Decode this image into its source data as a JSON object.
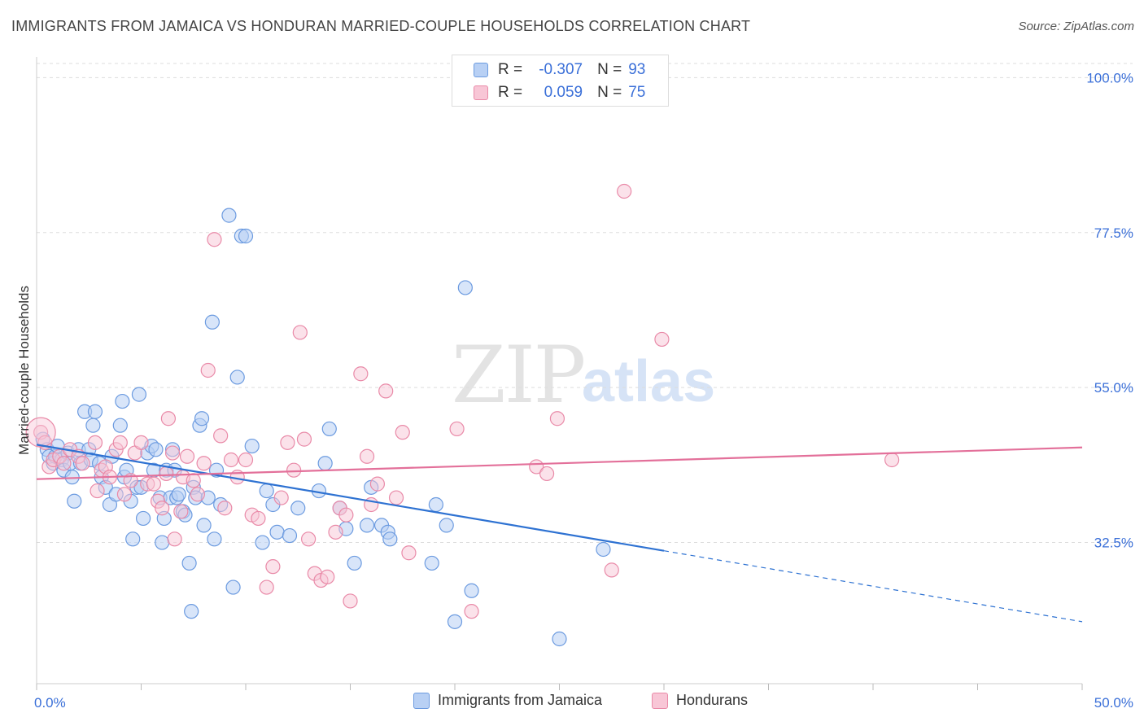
{
  "header": {
    "title": "IMMIGRANTS FROM JAMAICA VS HONDURAN MARRIED-COUPLE HOUSEHOLDS CORRELATION CHART",
    "source": "Source: ZipAtlas.com"
  },
  "watermark": {
    "part1": "ZIP",
    "part2": "atlas"
  },
  "legend_top": {
    "rows": [
      {
        "r_label": "R =",
        "r_value": "-0.307",
        "n_label": "N =",
        "n_value": "93"
      },
      {
        "r_label": "R =",
        "r_value": "0.059",
        "n_label": "N =",
        "n_value": "75"
      }
    ]
  },
  "legend_bottom": {
    "items": [
      "Immigrants from Jamaica",
      "Hondurans"
    ]
  },
  "colors": {
    "jamaica_fill": "#b8d0f4",
    "jamaica_stroke": "#6c9be0",
    "jamaica_line": "#2e72d2",
    "honduran_fill": "#f8c6d6",
    "honduran_stroke": "#e98aa8",
    "honduran_line": "#e3709a",
    "tick_label": "#3a6fd8",
    "grid": "#dddddd"
  },
  "chart_data": {
    "type": "scatter",
    "title": "IMMIGRANTS FROM JAMAICA VS HONDURAN MARRIED-COUPLE HOUSEHOLDS CORRELATION CHART",
    "xlabel": "",
    "ylabel": "Married-couple Households",
    "xlim": [
      0,
      50
    ],
    "ylim": [
      12,
      103
    ],
    "x_tick_labels": [
      "0.0%",
      "50.0%"
    ],
    "y_ticks": [
      32.5,
      55.0,
      77.5,
      100.0
    ],
    "y_tick_labels": [
      "32.5%",
      "55.0%",
      "77.5%",
      "100.0%"
    ],
    "grid": true,
    "legend": "bottom-center",
    "series": [
      {
        "name": "Immigrants from Jamaica",
        "r": -0.307,
        "n": 93,
        "trend": {
          "x0": 0,
          "y0": 46.7,
          "x1": 30,
          "y1": 31.3,
          "dash_to_x": 50,
          "dash_to_y": 21.0
        },
        "points": [
          [
            0.3,
            47.5
          ],
          [
            0.5,
            46
          ],
          [
            0.6,
            45
          ],
          [
            0.8,
            44
          ],
          [
            0.9,
            45
          ],
          [
            1.0,
            46.5
          ],
          [
            1.2,
            44.5
          ],
          [
            1.3,
            43
          ],
          [
            1.5,
            45.5
          ],
          [
            1.6,
            44
          ],
          [
            1.7,
            42
          ],
          [
            1.8,
            38.5
          ],
          [
            2.0,
            46
          ],
          [
            2.1,
            44
          ],
          [
            2.3,
            51.5
          ],
          [
            2.5,
            46
          ],
          [
            2.6,
            44.5
          ],
          [
            2.7,
            49.5
          ],
          [
            2.8,
            51.5
          ],
          [
            3.0,
            44
          ],
          [
            3.1,
            42
          ],
          [
            3.3,
            40.5
          ],
          [
            3.5,
            38
          ],
          [
            3.6,
            45
          ],
          [
            3.8,
            39.5
          ],
          [
            4.0,
            49.5
          ],
          [
            4.1,
            53
          ],
          [
            4.2,
            42
          ],
          [
            4.3,
            43
          ],
          [
            4.5,
            38.5
          ],
          [
            4.6,
            33
          ],
          [
            4.8,
            40.5
          ],
          [
            4.9,
            54
          ],
          [
            5.0,
            40.5
          ],
          [
            5.1,
            36
          ],
          [
            5.3,
            45.5
          ],
          [
            5.5,
            46.5
          ],
          [
            5.6,
            43
          ],
          [
            5.7,
            46
          ],
          [
            5.9,
            39
          ],
          [
            6.0,
            32.5
          ],
          [
            6.1,
            36
          ],
          [
            6.2,
            43
          ],
          [
            6.4,
            39
          ],
          [
            6.5,
            46
          ],
          [
            6.6,
            43
          ],
          [
            6.7,
            39
          ],
          [
            6.8,
            39.5
          ],
          [
            7.0,
            37
          ],
          [
            7.1,
            36.5
          ],
          [
            7.3,
            29.5
          ],
          [
            7.4,
            22.5
          ],
          [
            7.5,
            40.5
          ],
          [
            7.6,
            39
          ],
          [
            7.8,
            49.5
          ],
          [
            7.9,
            50.5
          ],
          [
            8.0,
            35
          ],
          [
            8.2,
            39
          ],
          [
            8.4,
            64.5
          ],
          [
            8.5,
            33
          ],
          [
            8.6,
            43
          ],
          [
            8.8,
            38
          ],
          [
            9.2,
            80
          ],
          [
            9.4,
            26
          ],
          [
            9.6,
            56.5
          ],
          [
            9.8,
            77
          ],
          [
            10.0,
            77
          ],
          [
            10.3,
            46.5
          ],
          [
            10.8,
            32.5
          ],
          [
            11.0,
            40
          ],
          [
            11.3,
            38
          ],
          [
            11.5,
            34
          ],
          [
            12.1,
            33.5
          ],
          [
            12.5,
            37.5
          ],
          [
            13.5,
            40
          ],
          [
            13.8,
            44
          ],
          [
            14.0,
            49
          ],
          [
            14.5,
            37.5
          ],
          [
            14.8,
            34.5
          ],
          [
            15.2,
            29.5
          ],
          [
            15.8,
            35
          ],
          [
            16.0,
            40.5
          ],
          [
            16.5,
            35
          ],
          [
            16.8,
            34
          ],
          [
            18.9,
            29.5
          ],
          [
            19.1,
            38
          ],
          [
            19.6,
            35
          ],
          [
            20.0,
            21
          ],
          [
            20.5,
            69.5
          ],
          [
            20.8,
            25.5
          ],
          [
            25.0,
            18.5
          ],
          [
            27.1,
            31.5
          ],
          [
            16.9,
            33
          ]
        ]
      },
      {
        "name": "Hondurans",
        "r": 0.059,
        "n": 75,
        "trend": {
          "x0": 0,
          "y0": 41.7,
          "x1": 50,
          "y1": 46.3
        },
        "points": [
          [
            0.2,
            48.5
          ],
          [
            0.4,
            47
          ],
          [
            0.6,
            43.5
          ],
          [
            0.8,
            44.5
          ],
          [
            1.1,
            45
          ],
          [
            1.3,
            44
          ],
          [
            1.6,
            46
          ],
          [
            2.0,
            45
          ],
          [
            2.2,
            44
          ],
          [
            2.8,
            47
          ],
          [
            2.9,
            40
          ],
          [
            3.1,
            43
          ],
          [
            3.3,
            43.5
          ],
          [
            3.5,
            42
          ],
          [
            3.8,
            46
          ],
          [
            4.0,
            47
          ],
          [
            4.2,
            39.5
          ],
          [
            4.5,
            41.5
          ],
          [
            4.7,
            45.5
          ],
          [
            5.0,
            47
          ],
          [
            5.3,
            41
          ],
          [
            5.6,
            41
          ],
          [
            5.8,
            38.5
          ],
          [
            6.0,
            37.5
          ],
          [
            6.2,
            42.5
          ],
          [
            6.3,
            50.5
          ],
          [
            6.5,
            45.5
          ],
          [
            6.6,
            33
          ],
          [
            6.9,
            37
          ],
          [
            7.0,
            42
          ],
          [
            7.2,
            45
          ],
          [
            7.5,
            41.5
          ],
          [
            7.7,
            39.5
          ],
          [
            8.0,
            44
          ],
          [
            8.2,
            57.5
          ],
          [
            8.5,
            76.5
          ],
          [
            8.8,
            48
          ],
          [
            9.0,
            37.5
          ],
          [
            9.3,
            44.5
          ],
          [
            9.6,
            42
          ],
          [
            10.0,
            44.5
          ],
          [
            10.3,
            36.5
          ],
          [
            10.6,
            36
          ],
          [
            11.0,
            26
          ],
          [
            11.3,
            29
          ],
          [
            11.7,
            39
          ],
          [
            12.0,
            47
          ],
          [
            12.3,
            43
          ],
          [
            12.6,
            63
          ],
          [
            12.8,
            47.5
          ],
          [
            13.0,
            33
          ],
          [
            13.3,
            28
          ],
          [
            13.6,
            27
          ],
          [
            13.9,
            27.5
          ],
          [
            14.3,
            34
          ],
          [
            14.5,
            37.5
          ],
          [
            14.8,
            36.5
          ],
          [
            15.0,
            24
          ],
          [
            15.5,
            57
          ],
          [
            15.8,
            45
          ],
          [
            16.0,
            38
          ],
          [
            16.3,
            41
          ],
          [
            16.7,
            54.5
          ],
          [
            17.2,
            39
          ],
          [
            17.5,
            48.5
          ],
          [
            17.8,
            31
          ],
          [
            20.1,
            49
          ],
          [
            20.8,
            22.5
          ],
          [
            23.9,
            43.5
          ],
          [
            24.4,
            42.5
          ],
          [
            24.9,
            50.5
          ],
          [
            27.5,
            28.5
          ],
          [
            28.1,
            83.5
          ],
          [
            29.9,
            62
          ],
          [
            40.9,
            44.5
          ]
        ]
      }
    ]
  }
}
